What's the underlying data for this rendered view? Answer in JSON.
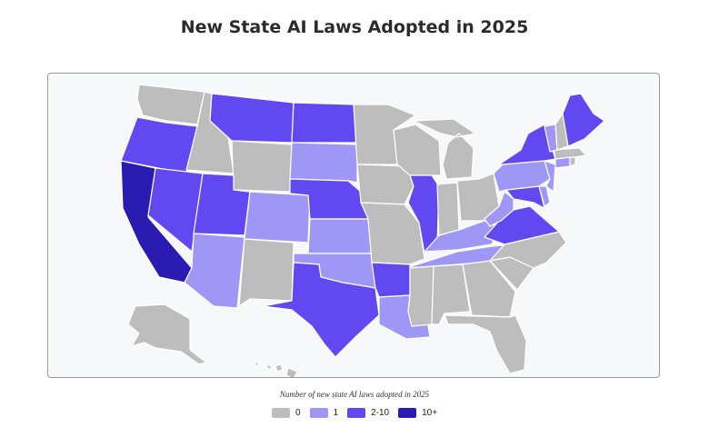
{
  "title": "New State AI Laws Adopted in 2025",
  "legend": {
    "title": "Number of new state AI laws adopted in 2025",
    "items": [
      {
        "label": "0",
        "color": "#bdbdbd"
      },
      {
        "label": "1",
        "color": "#9f97f5"
      },
      {
        "label": "2-10",
        "color": "#6148f0"
      },
      {
        "label": "10+",
        "color": "#2a1bb3"
      }
    ]
  },
  "states": [
    {
      "id": "WA",
      "category": "0"
    },
    {
      "id": "OR",
      "category": "2-10"
    },
    {
      "id": "CA",
      "category": "10+"
    },
    {
      "id": "ID",
      "category": "0"
    },
    {
      "id": "NV",
      "category": "2-10"
    },
    {
      "id": "MT",
      "category": "2-10"
    },
    {
      "id": "WY",
      "category": "0"
    },
    {
      "id": "UT",
      "category": "2-10"
    },
    {
      "id": "AZ",
      "category": "1"
    },
    {
      "id": "CO",
      "category": "1"
    },
    {
      "id": "NM",
      "category": "0"
    },
    {
      "id": "ND",
      "category": "2-10"
    },
    {
      "id": "SD",
      "category": "1"
    },
    {
      "id": "NE",
      "category": "2-10"
    },
    {
      "id": "KS",
      "category": "1"
    },
    {
      "id": "OK",
      "category": "1"
    },
    {
      "id": "TX",
      "category": "2-10"
    },
    {
      "id": "MN",
      "category": "0"
    },
    {
      "id": "IA",
      "category": "0"
    },
    {
      "id": "MO",
      "category": "0"
    },
    {
      "id": "AR",
      "category": "2-10"
    },
    {
      "id": "LA",
      "category": "1"
    },
    {
      "id": "WI",
      "category": "0"
    },
    {
      "id": "IL",
      "category": "2-10"
    },
    {
      "id": "MI",
      "category": "0"
    },
    {
      "id": "IN",
      "category": "0"
    },
    {
      "id": "OH",
      "category": "0"
    },
    {
      "id": "KY",
      "category": "1"
    },
    {
      "id": "TN",
      "category": "1"
    },
    {
      "id": "MS",
      "category": "0"
    },
    {
      "id": "AL",
      "category": "0"
    },
    {
      "id": "GA",
      "category": "0"
    },
    {
      "id": "FL",
      "category": "0"
    },
    {
      "id": "SC",
      "category": "0"
    },
    {
      "id": "NC",
      "category": "0"
    },
    {
      "id": "VA",
      "category": "2-10"
    },
    {
      "id": "WV",
      "category": "1"
    },
    {
      "id": "MD",
      "category": "2-10"
    },
    {
      "id": "DE",
      "category": "1"
    },
    {
      "id": "PA",
      "category": "1"
    },
    {
      "id": "NJ",
      "category": "1"
    },
    {
      "id": "NY",
      "category": "2-10"
    },
    {
      "id": "CT",
      "category": "1"
    },
    {
      "id": "RI",
      "category": "0"
    },
    {
      "id": "MA",
      "category": "0"
    },
    {
      "id": "VT",
      "category": "1"
    },
    {
      "id": "NH",
      "category": "0"
    },
    {
      "id": "ME",
      "category": "2-10"
    },
    {
      "id": "AK",
      "category": "0"
    },
    {
      "id": "HI",
      "category": "0"
    }
  ]
}
